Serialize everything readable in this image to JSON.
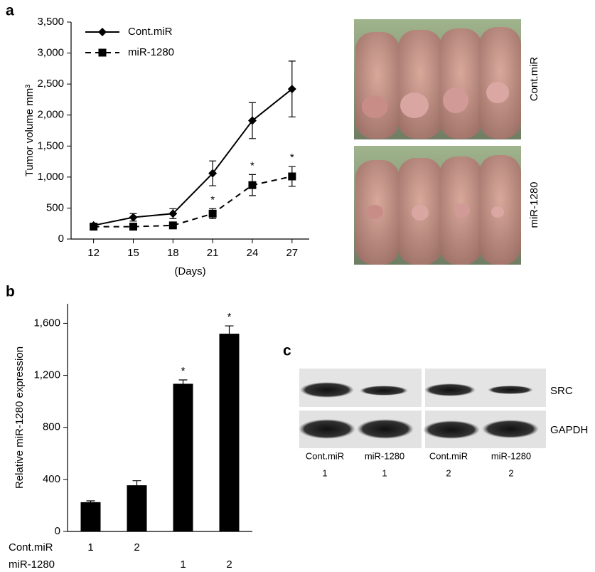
{
  "chart_data": [
    {
      "type": "line",
      "panel_label": "a",
      "y_label": "Tumor volume mm³",
      "x_label": "(Days)",
      "x": [
        12,
        15,
        18,
        21,
        24,
        27
      ],
      "series": [
        {
          "name": "Cont.miR",
          "color": "#000000",
          "line_style": "solid",
          "marker": "diamond",
          "values": [
            220,
            350,
            410,
            1060,
            1910,
            2420
          ],
          "errors": [
            30,
            60,
            80,
            200,
            290,
            450
          ]
        },
        {
          "name": "miR-1280",
          "color": "#000000",
          "line_style": "dashed",
          "marker": "square",
          "values": [
            200,
            200,
            220,
            410,
            870,
            1010
          ],
          "errors": [
            20,
            20,
            20,
            80,
            170,
            160
          ],
          "significance": [
            null,
            null,
            null,
            "*",
            "*",
            "*"
          ]
        }
      ],
      "xlim": [
        10.3,
        28.3
      ],
      "xticks": [
        12,
        15,
        18,
        21,
        24,
        27
      ],
      "ylim": [
        0,
        3500
      ],
      "yticks": [
        0,
        500,
        {
          "value": 1000,
          "label": "1,000"
        },
        {
          "value": 1500,
          "label": "1,500"
        },
        {
          "value": 2000,
          "label": "2,000"
        },
        {
          "value": 2500,
          "label": "2,500"
        },
        {
          "value": 3000,
          "label": "3,000"
        },
        {
          "value": 3500,
          "label": "3,500"
        }
      ],
      "grid": false,
      "legend": "upper left"
    },
    {
      "type": "bar",
      "panel_label": "b",
      "y_label": "Relative miR-1280 expression",
      "category_rows": [
        {
          "name": "Cont.miR",
          "labels": [
            "1",
            "2",
            null,
            null
          ]
        },
        {
          "name": "miR-1280",
          "labels": [
            null,
            null,
            "1",
            "2"
          ]
        }
      ],
      "values": [
        225,
        355,
        1135,
        1520
      ],
      "errors": [
        10,
        35,
        30,
        60
      ],
      "significance": [
        null,
        null,
        "*",
        "*"
      ],
      "color": "#000000",
      "ylim": [
        0,
        1750
      ],
      "yticks": [
        0,
        400,
        800,
        {
          "value": 1200,
          "label": "1,200"
        },
        {
          "value": 1600,
          "label": "1,600"
        }
      ],
      "grid": false
    }
  ],
  "photos": {
    "labels": [
      "Cont.miR",
      "miR-1280"
    ]
  },
  "blot": {
    "panel_label": "c",
    "rows": [
      "SRC",
      "GAPDH"
    ],
    "lanes": [
      "Cont.miR",
      "miR-1280",
      "Cont.miR",
      "miR-1280"
    ],
    "lane_numbers": [
      "1",
      "1",
      "2",
      "2"
    ]
  }
}
